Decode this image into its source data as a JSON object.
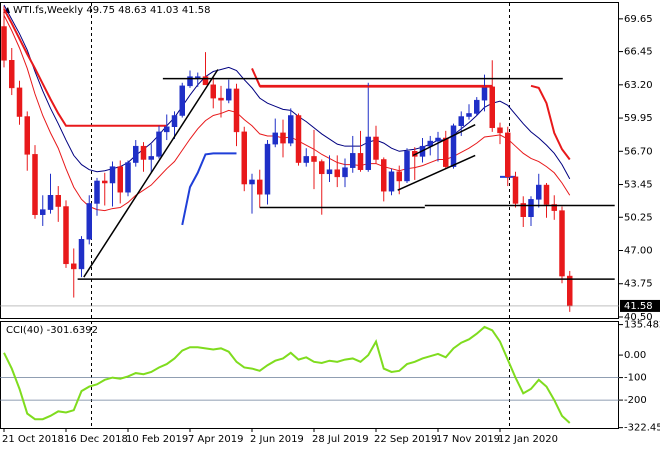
{
  "chart_data": [
    {
      "type": "candlestick",
      "title": "WTI.fs,Weekly",
      "header_ohlc": [
        49.75,
        48.63,
        41.03,
        41.58
      ],
      "categories": [
        "21 Oct 2018",
        null,
        null,
        null,
        null,
        null,
        null,
        null,
        "16 Dec 2018",
        null,
        null,
        null,
        null,
        null,
        null,
        null,
        "10 Feb 2019",
        null,
        null,
        null,
        null,
        null,
        null,
        null,
        "7 Apr 2019",
        null,
        null,
        null,
        null,
        null,
        null,
        null,
        "2 Jun 2019",
        null,
        null,
        null,
        null,
        null,
        null,
        null,
        "28 Jul 2019",
        null,
        null,
        null,
        null,
        null,
        null,
        null,
        "22 Sep 2019",
        null,
        null,
        null,
        null,
        null,
        null,
        null,
        "17 Nov 2019",
        null,
        null,
        null,
        null,
        null,
        null,
        null,
        "12 Jan 2020",
        null,
        null,
        null,
        null,
        null,
        null,
        null,
        null,
        null
      ],
      "open": [
        68.9,
        65.6,
        62.9,
        60.1,
        56.4,
        50.5,
        51.0,
        52.4,
        51.3,
        45.7,
        45.2,
        48.1,
        51.6,
        53.8,
        53.6,
        55.2,
        52.7,
        55.6,
        57.2,
        55.9,
        56.2,
        58.6,
        59.1,
        60.2,
        63.1,
        64.0,
        64.0,
        63.2,
        61.9,
        61.7,
        62.8,
        58.6,
        53.5,
        53.9,
        52.5,
        57.4,
        58.5,
        57.5,
        60.2,
        55.6,
        56.2,
        55.7,
        54.5,
        54.9,
        54.2,
        55.1,
        56.5,
        54.9,
        58.1,
        55.9,
        52.8,
        54.7,
        53.8,
        56.7,
        56.2,
        57.2,
        57.7,
        58.0,
        55.2,
        59.2,
        60.1,
        60.4,
        61.7,
        63.0,
        59.0,
        58.5,
        54.2,
        51.6,
        50.3,
        52.0,
        53.4,
        51.5,
        50.9,
        44.5
      ],
      "high": [
        70.9,
        66.8,
        63.6,
        60.6,
        57.3,
        52.4,
        54.5,
        53.3,
        51.9,
        47.2,
        48.4,
        52.4,
        54.1,
        54.6,
        55.7,
        55.8,
        55.8,
        57.8,
        57.6,
        57.4,
        59.2,
        60.3,
        60.6,
        63.4,
        64.6,
        64.4,
        66.4,
        64.0,
        63.1,
        63.7,
        63.3,
        59.1,
        54.5,
        54.9,
        57.8,
        59.9,
        59.8,
        60.9,
        60.4,
        57.0,
        58.8,
        55.9,
        56.3,
        56.3,
        56.0,
        58.2,
        58.7,
        63.4,
        59.2,
        56.1,
        55.0,
        55.3,
        57.0,
        57.1,
        58.0,
        58.2,
        58.6,
        58.7,
        59.4,
        60.6,
        61.3,
        62.0,
        64.2,
        65.6,
        59.5,
        59.1,
        54.7,
        52.3,
        52.3,
        54.5,
        53.6,
        52.4,
        51.3,
        45.0
      ],
      "low": [
        64.9,
        62.2,
        59.3,
        54.8,
        50.1,
        49.4,
        50.6,
        49.8,
        45.3,
        42.4,
        44.4,
        47.6,
        50.4,
        51.4,
        51.3,
        51.6,
        52.3,
        55.2,
        54.7,
        54.6,
        56.0,
        57.8,
        57.9,
        60.0,
        62.9,
        63.0,
        63.5,
        60.9,
        60.0,
        61.4,
        57.2,
        52.8,
        50.6,
        51.2,
        51.5,
        57.1,
        56.1,
        57.2,
        55.3,
        55.2,
        53.0,
        50.5,
        53.7,
        53.2,
        53.2,
        54.6,
        54.7,
        54.7,
        55.5,
        51.8,
        52.4,
        52.5,
        53.6,
        53.9,
        55.6,
        56.3,
        55.7,
        55.0,
        55.0,
        58.2,
        59.8,
        60.2,
        60.6,
        58.6,
        57.4,
        53.3,
        51.2,
        49.3,
        49.4,
        51.2,
        50.2,
        50.0,
        43.8,
        41.0
      ],
      "close": [
        65.6,
        62.9,
        60.1,
        56.4,
        50.5,
        51.0,
        52.4,
        51.3,
        45.7,
        45.2,
        48.1,
        51.6,
        53.8,
        53.6,
        55.2,
        52.7,
        55.6,
        57.2,
        55.9,
        56.2,
        58.6,
        59.1,
        60.2,
        63.1,
        64.0,
        64.0,
        63.2,
        61.9,
        61.7,
        62.8,
        58.6,
        53.5,
        53.9,
        52.5,
        57.4,
        58.5,
        57.5,
        60.2,
        55.6,
        56.2,
        55.7,
        54.5,
        54.9,
        54.2,
        55.1,
        56.5,
        54.9,
        58.1,
        55.9,
        52.8,
        54.7,
        53.8,
        56.7,
        56.2,
        57.2,
        57.7,
        58.0,
        55.2,
        59.2,
        60.1,
        60.4,
        61.7,
        63.0,
        59.0,
        58.5,
        54.2,
        51.6,
        50.3,
        52.0,
        53.4,
        51.5,
        50.9,
        44.5,
        41.58
      ],
      "up_color": "#1f2fc7",
      "down_color": "#e8191b",
      "overlays": [
        {
          "color": "#e8191b",
          "width": 1,
          "values": [
            70.0,
            68.5,
            66.8,
            64.8,
            62.3,
            60.2,
            58.5,
            57.0,
            55.0,
            53.2,
            52.0,
            51.3,
            51.0,
            50.9,
            51.1,
            51.2,
            51.7,
            52.4,
            52.9,
            53.4,
            54.2,
            55.0,
            55.7,
            56.8,
            57.9,
            58.9,
            59.7,
            60.2,
            60.4,
            60.7,
            60.5,
            59.8,
            59.2,
            58.4,
            58.2,
            58.2,
            58.0,
            58.1,
            57.7,
            57.3,
            56.9,
            56.4,
            56.0,
            55.6,
            55.4,
            55.4,
            55.3,
            55.5,
            55.5,
            55.2,
            55.0,
            54.8,
            55.0,
            55.1,
            55.3,
            55.6,
            55.9,
            55.9,
            56.2,
            56.6,
            57.0,
            57.5,
            58.1,
            58.2,
            58.3,
            57.9,
            57.2,
            56.5,
            56.0,
            55.7,
            55.2,
            54.6,
            53.6,
            52.4
          ]
        },
        {
          "color": "#000080",
          "width": 1,
          "values": [
            71.0,
            69.6,
            68.2,
            66.6,
            64.5,
            62.6,
            60.9,
            59.4,
            57.8,
            56.3,
            55.4,
            54.9,
            54.7,
            54.8,
            55.0,
            55.2,
            55.6,
            56.3,
            56.9,
            57.5,
            58.3,
            59.2,
            60.0,
            61.1,
            62.2,
            63.2,
            64.0,
            64.5,
            64.7,
            64.9,
            64.6,
            63.7,
            62.9,
            61.9,
            61.4,
            61.1,
            60.8,
            60.7,
            60.1,
            59.6,
            59.0,
            58.4,
            57.9,
            57.4,
            57.2,
            57.2,
            57.2,
            57.6,
            57.8,
            57.5,
            57.0,
            56.7,
            56.8,
            56.9,
            57.1,
            57.4,
            57.8,
            57.8,
            58.3,
            58.9,
            59.5,
            60.2,
            61.0,
            61.4,
            61.6,
            61.2,
            60.3,
            59.4,
            58.6,
            58.0,
            57.3,
            56.5,
            55.4,
            54.0
          ]
        },
        {
          "color": "#e8191b",
          "width": 2,
          "values": [
            70.6,
            69.2,
            67.7,
            66.2,
            64.8,
            63.3,
            61.8,
            60.4,
            59.2,
            59.2,
            59.2,
            59.2,
            59.2,
            59.2,
            59.2,
            59.2,
            59.2,
            59.2,
            59.2,
            59.2,
            59.2,
            59.2,
            null,
            null,
            null,
            null,
            null,
            null,
            null,
            null,
            null,
            null,
            64.8,
            63.1,
            63.1,
            63.1,
            63.1,
            63.1,
            63.1,
            63.1,
            63.1,
            63.1,
            63.1,
            63.1,
            63.1,
            63.1,
            63.1,
            63.1,
            63.1,
            63.1,
            63.1,
            63.1,
            63.1,
            63.1,
            63.1,
            63.1,
            63.1,
            63.1,
            63.1,
            63.1,
            63.1,
            63.1,
            63.1,
            63.1,
            null,
            null,
            null,
            null,
            63.1,
            62.9,
            61.4,
            58.5,
            56.9,
            55.9
          ]
        },
        {
          "color": "#1f3fd8",
          "width": 2,
          "values": [
            null,
            null,
            null,
            null,
            null,
            null,
            null,
            null,
            null,
            null,
            null,
            null,
            null,
            null,
            null,
            null,
            null,
            null,
            null,
            null,
            null,
            null,
            null,
            49.5,
            53.2,
            54.6,
            56.4,
            56.5,
            56.5,
            56.5,
            56.5,
            null,
            null,
            null,
            null,
            null,
            null,
            null,
            null,
            null,
            null,
            null,
            null,
            null,
            null,
            null,
            null,
            null,
            null,
            null,
            null,
            null,
            null,
            null,
            null,
            null,
            null,
            null,
            null,
            null,
            null,
            null,
            null,
            null,
            54.2,
            54.2,
            54.2,
            null,
            null,
            null,
            null,
            null,
            null,
            null
          ]
        }
      ],
      "trendlines": [
        {
          "color": "#000000",
          "points": [
            [
              10.3,
              44.4
            ],
            [
              27.6,
              64.7
            ]
          ]
        },
        {
          "color": "#000000",
          "points": [
            [
              20.5,
              63.8
            ],
            [
              72.1,
              63.8
            ]
          ]
        },
        {
          "color": "#000000",
          "points": [
            [
              33.0,
              51.2
            ],
            [
              54.3,
              51.2
            ]
          ]
        },
        {
          "color": "#000000",
          "points": [
            [
              54.3,
              51.4
            ],
            [
              78.8,
              51.4
            ]
          ]
        },
        {
          "color": "#000000",
          "points": [
            [
              9.5,
              44.2
            ],
            [
              78.8,
              44.2
            ]
          ]
        },
        {
          "color": "#e8191b",
          "points": [
            [
              33.0,
              63.0
            ],
            [
              63.1,
              63.0
            ]
          ]
        },
        {
          "color": "#000000",
          "points": [
            [
              52.8,
              56.3
            ],
            [
              60.8,
              59.3
            ]
          ]
        },
        {
          "color": "#000000",
          "points": [
            [
              50.8,
              52.9
            ],
            [
              60.8,
              56.3
            ]
          ]
        }
      ],
      "ylim": [
        40.4,
        71.2
      ],
      "yticks": [
        69.65,
        66.45,
        {
          "value": 63.2,
          "label": "63.20"
        },
        59.95,
        {
          "value": 56.7,
          "label": "56.70"
        },
        53.45,
        50.25,
        {
          "value": 47.0,
          "label": "47.00"
        },
        43.75,
        {
          "value": 40.5,
          "label": "40.50"
        }
      ]
    },
    {
      "type": "line",
      "title": "CCI(40)",
      "color": "#7fdc1e",
      "values": [
        10,
        -60,
        -150,
        -260,
        -285,
        -285,
        -270,
        -250,
        -255,
        -245,
        -160,
        -140,
        -130,
        -110,
        -100,
        -105,
        -95,
        -80,
        -85,
        -75,
        -55,
        -40,
        -15,
        20,
        35,
        35,
        30,
        25,
        30,
        15,
        -30,
        -55,
        -60,
        -70,
        -45,
        -25,
        -15,
        10,
        -20,
        -10,
        -30,
        -35,
        -25,
        -30,
        -20,
        -15,
        -30,
        0,
        60,
        -60,
        -75,
        -70,
        -40,
        -30,
        -15,
        -5,
        5,
        -10,
        30,
        55,
        70,
        95,
        125,
        110,
        60,
        -20,
        -100,
        -170,
        -150,
        -110,
        -140,
        -200,
        -270,
        -301.6392
      ],
      "levels": [
        -100,
        -200
      ],
      "level_color": "#6b7f99",
      "ylim": [
        -324,
        147
      ],
      "yticks": [
        135.4829,
        {
          "value": 0,
          "label": "0.00"
        },
        -100,
        -200,
        -322.454
      ]
    }
  ]
}
